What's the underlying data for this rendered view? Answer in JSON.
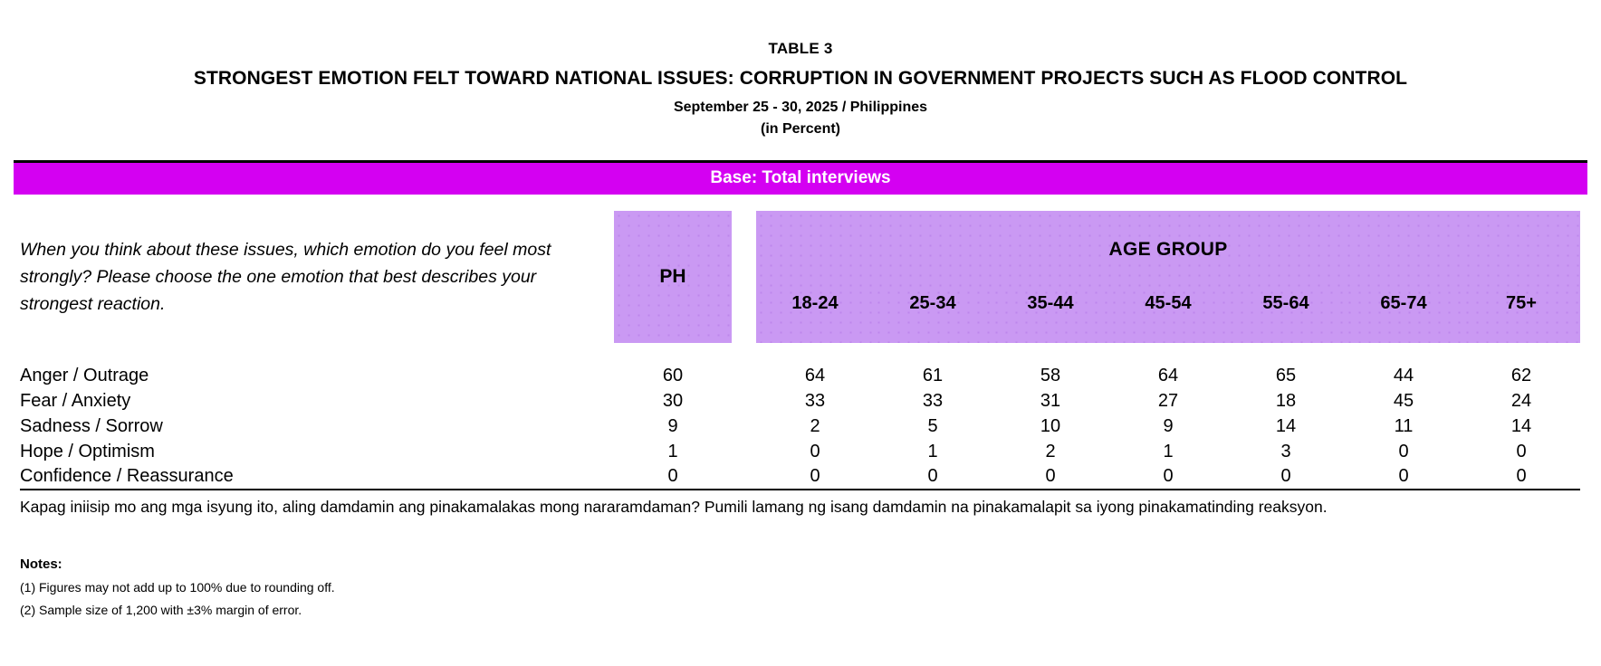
{
  "header": {
    "table_no": "TABLE 3",
    "title": "STRONGEST EMOTION FELT TOWARD NATIONAL ISSUES: CORRUPTION IN GOVERNMENT PROJECTS SUCH AS FLOOD CONTROL",
    "date_location": "September 25 - 30, 2025 / Philippines",
    "unit": "(in Percent)"
  },
  "banner": {
    "label": "Base: Total interviews"
  },
  "table": {
    "question_en": "When you think about these issues, which emotion do you feel most strongly? Please choose the one emotion that best describes your strongest reaction.",
    "question_fil": "Kapag iniisip mo ang mga isyung ito, aling damdamin ang pinakamalakas mong nararamdaman? Pumili lamang ng isang damdamin na pinakamalapit sa iyong pinakamatinding reaksyon.",
    "ph_column": "PH",
    "age_group_header": "AGE GROUP",
    "age_columns": [
      "18-24",
      "25-34",
      "35-44",
      "45-54",
      "55-64",
      "65-74",
      "75+"
    ],
    "rows": [
      {
        "label": "Anger / Outrage",
        "values": [
          60,
          64,
          61,
          58,
          64,
          65,
          44,
          62
        ]
      },
      {
        "label": "Fear / Anxiety",
        "values": [
          30,
          33,
          33,
          31,
          27,
          18,
          45,
          24
        ]
      },
      {
        "label": "Sadness / Sorrow",
        "values": [
          9,
          2,
          5,
          10,
          9,
          14,
          11,
          14
        ]
      },
      {
        "label": "Hope / Optimism",
        "values": [
          1,
          0,
          1,
          2,
          1,
          3,
          0,
          0
        ]
      },
      {
        "label": "Confidence / Reassurance",
        "values": [
          0,
          0,
          0,
          0,
          0,
          0,
          0,
          0
        ]
      }
    ]
  },
  "notes": {
    "heading": "Notes:",
    "items": [
      "(1) Figures may not add up to 100% due to rounding off.",
      "(2) Sample size of 1,200 with ±3% margin of error."
    ]
  },
  "colors": {
    "banner_bg": "#d400f2",
    "banner_text": "#ffffff",
    "header_cell_bg": "#ca99f3"
  },
  "chart_data": {
    "type": "table",
    "title": "STRONGEST EMOTION FELT TOWARD NATIONAL ISSUES: CORRUPTION IN GOVERNMENT PROJECTS SUCH AS FLOOD CONTROL",
    "columns": [
      "PH",
      "18-24",
      "25-34",
      "35-44",
      "45-54",
      "55-64",
      "65-74",
      "75+"
    ],
    "series": [
      {
        "name": "Anger / Outrage",
        "values": [
          60,
          64,
          61,
          58,
          64,
          65,
          44,
          62
        ]
      },
      {
        "name": "Fear / Anxiety",
        "values": [
          30,
          33,
          33,
          31,
          27,
          18,
          45,
          24
        ]
      },
      {
        "name": "Sadness / Sorrow",
        "values": [
          9,
          2,
          5,
          10,
          9,
          14,
          11,
          14
        ]
      },
      {
        "name": "Hope / Optimism",
        "values": [
          1,
          0,
          1,
          2,
          1,
          3,
          0,
          0
        ]
      },
      {
        "name": "Confidence / Reassurance",
        "values": [
          0,
          0,
          0,
          0,
          0,
          0,
          0,
          0
        ]
      }
    ],
    "units": "percent"
  }
}
